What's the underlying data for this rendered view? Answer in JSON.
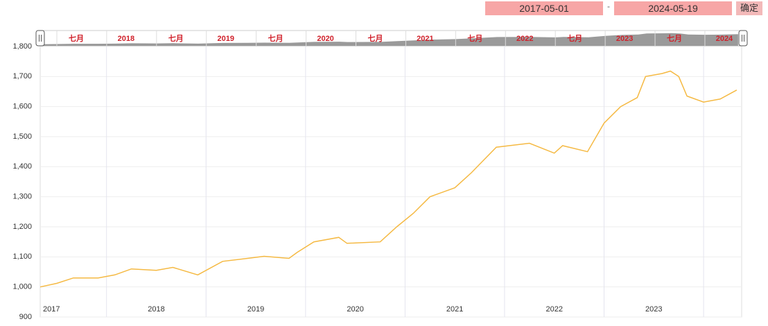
{
  "range": {
    "start": "2017-05-01",
    "end": "2024-05-19"
  },
  "confirm_button": "确定",
  "chart_data": {
    "type": "line",
    "x": [
      "2017-05",
      "2017-07",
      "2017-09",
      "2017-12",
      "2018-02",
      "2018-04",
      "2018-07",
      "2018-09",
      "2018-12",
      "2019-03",
      "2019-06",
      "2019-08",
      "2019-11",
      "2019-12",
      "2020-02",
      "2020-05",
      "2020-06",
      "2020-10",
      "2020-12",
      "2021-02",
      "2021-04",
      "2021-07",
      "2021-09",
      "2021-12",
      "2022-04",
      "2022-07",
      "2022-08",
      "2022-11",
      "2023-01",
      "2023-03",
      "2023-05",
      "2023-06",
      "2023-08",
      "2023-09",
      "2023-10",
      "2023-11",
      "2024-01",
      "2024-03",
      "2024-05"
    ],
    "series": [
      {
        "name": null,
        "color": "#f5b942",
        "values": [
          1000,
          1012,
          1030,
          1030,
          1040,
          1060,
          1055,
          1065,
          1040,
          1085,
          1095,
          1102,
          1095,
          1115,
          1150,
          1165,
          1145,
          1150,
          1200,
          1245,
          1300,
          1330,
          1380,
          1465,
          1478,
          1445,
          1470,
          1450,
          1545,
          1600,
          1630,
          1700,
          1710,
          1718,
          1700,
          1635,
          1615,
          1625,
          1655
        ]
      }
    ],
    "ylim": [
      900,
      1800
    ],
    "yticks": [
      900,
      {
        "value": 1000,
        "label": "1,000"
      },
      {
        "value": 1100,
        "label": "1,100"
      },
      {
        "value": 1200,
        "label": "1,200"
      },
      {
        "value": 1300,
        "label": "1,300"
      },
      {
        "value": 1400,
        "label": "1,400"
      },
      {
        "value": 1500,
        "label": "1,500"
      },
      {
        "value": 1600,
        "label": "1,600"
      },
      {
        "value": 1700,
        "label": "1,700"
      },
      {
        "value": 1800,
        "label": "1,800"
      }
    ],
    "year_labels": [
      "2017",
      "2018",
      "2019",
      "2020",
      "2021",
      "2022",
      "2023"
    ],
    "navigator_labels": [
      "七月",
      "2018",
      "七月",
      "2019",
      "七月",
      "2020",
      "七月",
      "2021",
      "七月",
      "2022",
      "七月",
      "2023",
      "七月",
      "2024"
    ],
    "grid": true
  }
}
